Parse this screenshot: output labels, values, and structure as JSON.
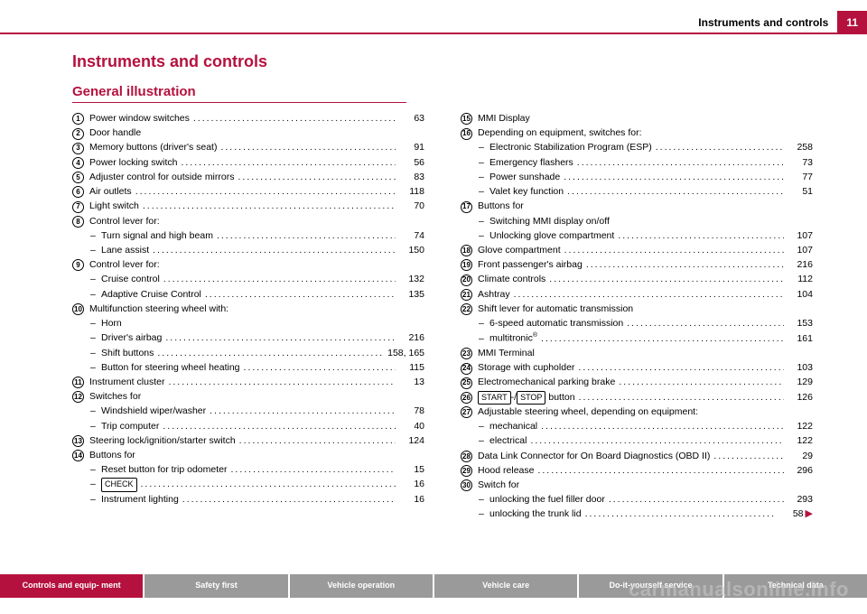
{
  "header": {
    "title": "Instruments and controls",
    "page_number": "11"
  },
  "main_title": "Instruments and controls",
  "section_title": "General illustration",
  "left_column": [
    {
      "marker": "1",
      "label": "Power window switches",
      "page": "63"
    },
    {
      "marker": "2",
      "label": "Door handle"
    },
    {
      "marker": "3",
      "label": "Memory buttons (driver's seat)",
      "page": "91"
    },
    {
      "marker": "4",
      "label": "Power locking switch",
      "page": "56"
    },
    {
      "marker": "5",
      "label": "Adjuster control for outside mirrors",
      "page": "83"
    },
    {
      "marker": "6",
      "label": "Air outlets",
      "page": "118"
    },
    {
      "marker": "7",
      "label": "Light switch",
      "page": "70"
    },
    {
      "marker": "8",
      "label": "Control lever for:"
    },
    {
      "sub": true,
      "label": "Turn signal and high beam",
      "page": "74"
    },
    {
      "sub": true,
      "label": "Lane assist",
      "page": "150"
    },
    {
      "marker": "9",
      "label": "Control lever for:"
    },
    {
      "sub": true,
      "label": "Cruise control",
      "page": "132"
    },
    {
      "sub": true,
      "label": "Adaptive Cruise Control",
      "page": "135"
    },
    {
      "marker": "10",
      "label": "Multifunction steering wheel with:"
    },
    {
      "sub": true,
      "label": "Horn"
    },
    {
      "sub": true,
      "label": "Driver's airbag",
      "page": "216"
    },
    {
      "sub": true,
      "label": "Shift buttons",
      "page": "158, 165"
    },
    {
      "sub": true,
      "label": "Button for steering wheel heating",
      "page": "115"
    },
    {
      "marker": "11",
      "label": "Instrument cluster",
      "page": "13"
    },
    {
      "marker": "12",
      "label": "Switches for"
    },
    {
      "sub": true,
      "label": "Windshield wiper/washer",
      "page": "78"
    },
    {
      "sub": true,
      "label": "Trip computer",
      "page": "40"
    },
    {
      "marker": "13",
      "label": "Steering lock/ignition/starter switch",
      "page": "124"
    },
    {
      "marker": "14",
      "label": "Buttons for"
    },
    {
      "sub": true,
      "label": "Reset button for trip odometer",
      "page": "15"
    },
    {
      "sub": true,
      "boxed": "CHECK",
      "label": "",
      "page": "16"
    },
    {
      "sub": true,
      "label": "Instrument lighting",
      "page": "16"
    }
  ],
  "right_column": [
    {
      "marker": "15",
      "label": "MMI Display"
    },
    {
      "marker": "16",
      "label": "Depending on equipment, switches for:"
    },
    {
      "sub": true,
      "label": "Electronic Stabilization Program (ESP)",
      "page": "258"
    },
    {
      "sub": true,
      "label": "Emergency flashers",
      "page": "73"
    },
    {
      "sub": true,
      "label": "Power sunshade",
      "page": "77"
    },
    {
      "sub": true,
      "label": "Valet key function",
      "page": "51"
    },
    {
      "marker": "17",
      "label": "Buttons for"
    },
    {
      "sub": true,
      "label": "Switching MMI display on/off"
    },
    {
      "sub": true,
      "label": "Unlocking glove compartment",
      "page": "107"
    },
    {
      "marker": "18",
      "label": "Glove compartment",
      "page": "107"
    },
    {
      "marker": "19",
      "label": "Front passenger's airbag",
      "page": "216"
    },
    {
      "marker": "20",
      "label": "Climate controls",
      "page": "112"
    },
    {
      "marker": "21",
      "label": "Ashtray",
      "page": "104"
    },
    {
      "marker": "22",
      "label": "Shift lever for automatic transmission"
    },
    {
      "sub": true,
      "label": "6-speed automatic transmission",
      "page": "153"
    },
    {
      "sub": true,
      "html": "multitronic<sup>®</sup>",
      "page": "161"
    },
    {
      "marker": "23",
      "label": "MMI Terminal"
    },
    {
      "marker": "24",
      "label": "Storage with cupholder",
      "page": "103"
    },
    {
      "marker": "25",
      "label": "Electromechanical parking brake",
      "page": "129"
    },
    {
      "marker": "26",
      "startstop": true,
      "label": " button",
      "page": "126"
    },
    {
      "marker": "27",
      "label": "Adjustable steering wheel, depending on equipment:"
    },
    {
      "sub": true,
      "label": "mechanical",
      "page": "122"
    },
    {
      "sub": true,
      "label": "electrical",
      "page": "122"
    },
    {
      "marker": "28",
      "label": "Data Link Connector for On Board Diagnostics (OBD II)",
      "page": "29"
    },
    {
      "marker": "29",
      "label": "Hood release",
      "page": "296"
    },
    {
      "marker": "30",
      "label": "Switch for"
    },
    {
      "sub": true,
      "label": "unlocking the fuel filler door",
      "page": "293"
    },
    {
      "sub": true,
      "label": "unlocking the trunk lid",
      "page": "58",
      "continue": true
    }
  ],
  "footer_tabs": [
    {
      "label": "Controls and equip-\nment",
      "active": true
    },
    {
      "label": "Safety first",
      "active": false
    },
    {
      "label": "Vehicle operation",
      "active": false
    },
    {
      "label": "Vehicle care",
      "active": false
    },
    {
      "label": "Do-it-yourself service",
      "active": false
    },
    {
      "label": "Technical data",
      "active": false
    }
  ],
  "watermark": "carmanualsonline.info",
  "startstop": {
    "start": "START",
    "stop": "STOP"
  }
}
